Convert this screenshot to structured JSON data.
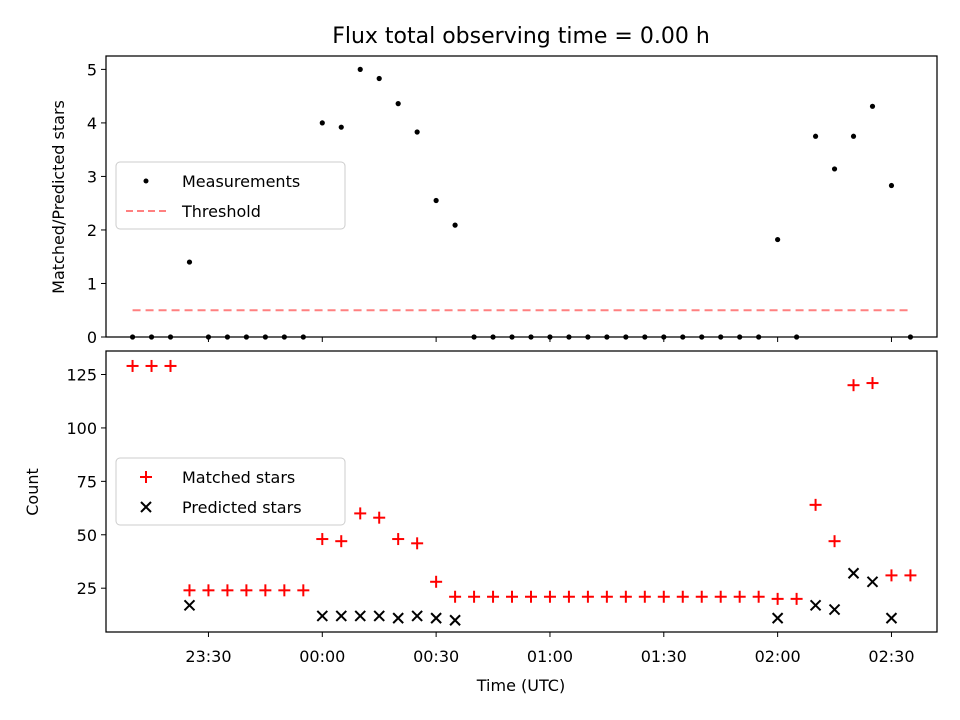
{
  "chart_data": [
    {
      "type": "scatter",
      "title": "Flux total observing time = 0.00 h",
      "ylabel": "Matched/Predicted stars",
      "xlabel": "",
      "ylim": [
        0,
        5.25
      ],
      "yticks": [
        0,
        1,
        2,
        3,
        4,
        5
      ],
      "legend_placement": "center-left",
      "threshold": 0.5,
      "series": [
        {
          "name": "Measurements",
          "color": "#000000",
          "marker": "dot",
          "x": [
            "23:10",
            "23:15",
            "23:20",
            "23:25",
            "23:30",
            "23:35",
            "23:40",
            "23:45",
            "23:50",
            "23:55",
            "00:00",
            "00:05",
            "00:10",
            "00:15",
            "00:20",
            "00:25",
            "00:30",
            "00:35",
            "00:40",
            "00:45",
            "00:50",
            "00:55",
            "01:00",
            "01:05",
            "01:10",
            "01:15",
            "01:20",
            "01:25",
            "01:30",
            "01:35",
            "01:40",
            "01:45",
            "01:50",
            "01:55",
            "02:00",
            "02:05",
            "02:10",
            "02:15",
            "02:20",
            "02:25",
            "02:30",
            "02:35"
          ],
          "y": [
            0,
            0,
            0,
            1.4,
            0,
            0,
            0,
            0,
            0,
            0,
            4.0,
            3.92,
            5.0,
            4.83,
            4.36,
            3.83,
            2.55,
            2.09,
            0,
            0,
            0,
            0,
            0,
            0,
            0,
            0,
            0,
            0,
            0,
            0,
            0,
            0,
            0,
            0,
            1.82,
            0,
            3.75,
            3.14,
            3.75,
            4.31,
            2.83,
            0
          ]
        },
        {
          "name": "Threshold",
          "color": "#ff8080",
          "style": "dashed",
          "x": [
            "23:10",
            "02:35"
          ],
          "y": [
            0.5,
            0.5
          ]
        }
      ]
    },
    {
      "type": "scatter",
      "title": "",
      "ylabel": "Count",
      "xlabel": "Time (UTC)",
      "ylim": [
        4.5,
        136
      ],
      "yticks": [
        25,
        50,
        75,
        100,
        125
      ],
      "xticks": [
        "23:30",
        "00:00",
        "00:30",
        "01:00",
        "01:30",
        "02:00",
        "02:30"
      ],
      "legend_placement": "center-left",
      "series": [
        {
          "name": "Matched stars",
          "color": "#ff0000",
          "marker": "plus",
          "x": [
            "23:10",
            "23:15",
            "23:20",
            "23:25",
            "23:30",
            "23:35",
            "23:40",
            "23:45",
            "23:50",
            "23:55",
            "00:00",
            "00:05",
            "00:10",
            "00:15",
            "00:20",
            "00:25",
            "00:30",
            "00:35",
            "00:40",
            "00:45",
            "00:50",
            "00:55",
            "01:00",
            "01:05",
            "01:10",
            "01:15",
            "01:20",
            "01:25",
            "01:30",
            "01:35",
            "01:40",
            "01:45",
            "01:50",
            "01:55",
            "02:00",
            "02:05",
            "02:10",
            "02:15",
            "02:20",
            "02:25",
            "02:30",
            "02:35"
          ],
          "y": [
            129,
            129,
            129,
            24,
            24,
            24,
            24,
            24,
            24,
            24,
            48,
            47,
            60,
            58,
            48,
            46,
            28,
            21,
            21,
            21,
            21,
            21,
            21,
            21,
            21,
            21,
            21,
            21,
            21,
            21,
            21,
            21,
            21,
            21,
            20,
            20,
            64,
            47,
            120,
            121,
            31,
            31
          ]
        },
        {
          "name": "Predicted stars",
          "color": "#000000",
          "marker": "x",
          "x": [
            "23:25",
            "00:00",
            "00:05",
            "00:10",
            "00:15",
            "00:20",
            "00:25",
            "00:30",
            "00:35",
            "02:00",
            "02:10",
            "02:15",
            "02:20",
            "02:25",
            "02:30"
          ],
          "y": [
            17,
            12,
            12,
            12,
            12,
            11,
            12,
            11,
            10,
            11,
            17,
            15,
            32,
            28,
            11
          ]
        }
      ]
    }
  ]
}
